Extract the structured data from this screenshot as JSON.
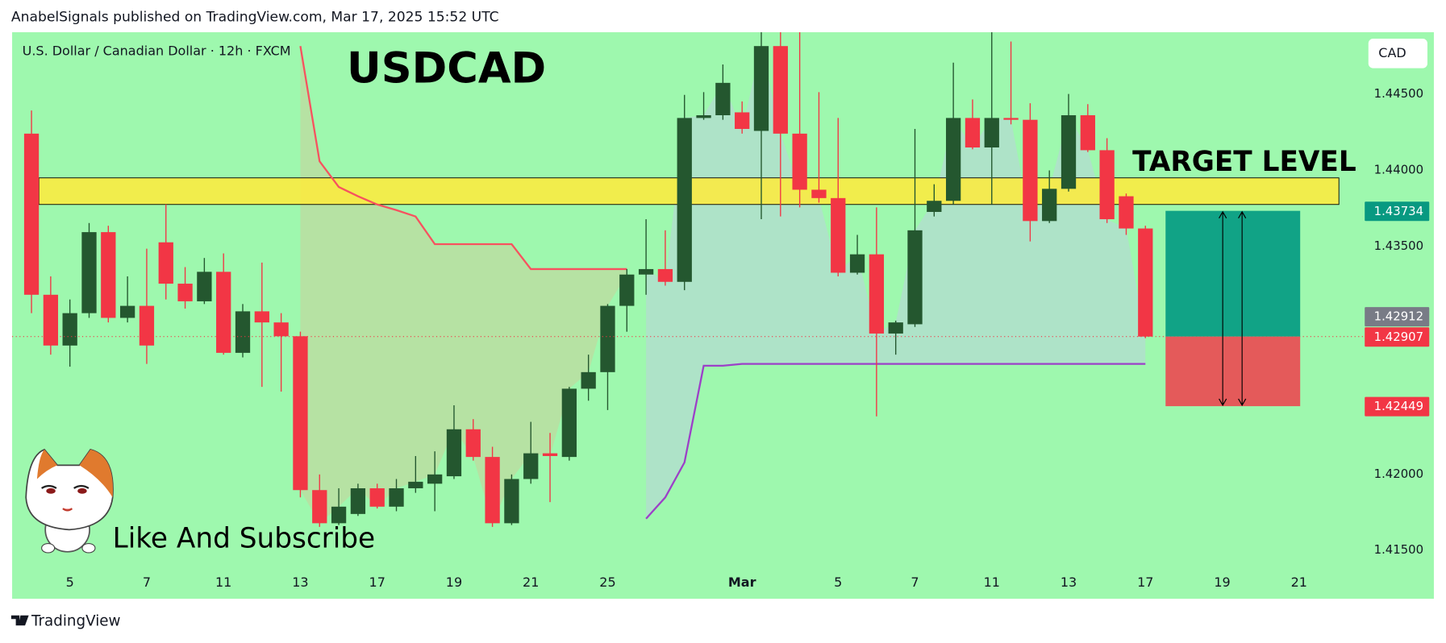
{
  "header": "AnabelSignals published on TradingView.com, Mar 17, 2025 15:52 UTC",
  "footer": "TradingView",
  "chart_data": {
    "type": "candlestick",
    "title": "USDCAD",
    "subtitle": "U.S. Dollar / Canadian Dollar · 12h · FXCM",
    "currency": "CAD",
    "annotation": "Like And Subscribe",
    "categories": [
      null,
      null,
      "5",
      null,
      null,
      null,
      "7",
      null,
      null,
      null,
      "11",
      null,
      null,
      null,
      "13",
      null,
      null,
      null,
      "17",
      null,
      null,
      null,
      "19",
      null,
      null,
      null,
      "21",
      null,
      null,
      null,
      "25",
      null,
      null,
      null,
      null,
      null,
      null,
      "Mar",
      null,
      null,
      null,
      null,
      "5",
      null,
      null,
      null,
      "7",
      null,
      null,
      null,
      "11",
      null,
      null,
      null,
      "13",
      null,
      null,
      null,
      "17",
      null,
      null,
      null,
      "19",
      null,
      null,
      null,
      "21",
      null,
      null
    ],
    "open": [
      1.44242,
      1.43182,
      1.42848,
      1.43061,
      1.43594,
      1.4303,
      1.43109,
      1.43527,
      1.43255,
      1.43139,
      1.43333,
      1.428,
      1.43073,
      1.43,
      1.42909,
      1.41897,
      1.41679,
      1.4174,
      1.41909,
      1.41788,
      1.41909,
      1.41939,
      1.41988,
      1.42297,
      1.42115,
      1.41679,
      1.4197,
      1.42139,
      1.42115,
      1.42564,
      1.42673,
      1.43109,
      1.43315,
      1.43351,
      1.43267,
      1.44345,
      1.44363,
      1.44382,
      1.4426,
      1.44818,
      1.44242,
      1.43873,
      1.43818,
      1.43327,
      1.43448,
      1.42927,
      1.42988,
      1.43727,
      1.438,
      1.44345,
      1.44151,
      1.44345,
      1.44333,
      1.43667,
      1.43879,
      1.44363,
      1.44133,
      1.4383,
      1.43618,
      null,
      null,
      null,
      null,
      null,
      null,
      null,
      null,
      null,
      null
    ],
    "high": [
      1.44394,
      1.43303,
      1.43151,
      1.43654,
      1.43636,
      1.43303,
      1.43485,
      1.43776,
      1.43364,
      1.43424,
      1.43454,
      1.43121,
      1.43394,
      1.43061,
      1.42939,
      1.42,
      1.41909,
      1.41939,
      1.41939,
      1.4197,
      1.42121,
      1.42152,
      1.42455,
      1.42364,
      1.42182,
      1.42,
      1.42346,
      1.42273,
      1.42576,
      1.42788,
      1.43121,
      1.43351,
      1.43679,
      1.43606,
      1.44497,
      1.44515,
      1.44697,
      1.44454,
      1.44909,
      1.44909,
      1.44909,
      1.44515,
      1.44345,
      1.43576,
      1.43757,
      1.43012,
      1.44273,
      1.43909,
      1.44709,
      1.44467,
      1.44909,
      1.44848,
      1.44442,
      1.44,
      1.44503,
      1.44436,
      1.44212,
      1.43848,
      1.43636,
      null,
      null,
      null,
      null,
      null,
      null,
      null,
      null,
      null,
      null
    ],
    "low": [
      1.43061,
      1.42788,
      1.42709,
      1.4303,
      1.43,
      1.43,
      1.42727,
      1.43151,
      1.43091,
      1.43121,
      1.42788,
      1.4277,
      1.42576,
      1.42545,
      1.41849,
      1.41655,
      1.41667,
      1.41727,
      1.41776,
      1.41758,
      1.41879,
      1.41758,
      1.4197,
      1.42091,
      1.41655,
      1.41667,
      1.41939,
      1.41818,
      1.42091,
      1.42485,
      1.42424,
      1.42939,
      1.43182,
      1.43242,
      1.43212,
      1.44333,
      1.44333,
      1.44242,
      1.43679,
      1.43697,
      1.43757,
      1.43788,
      1.43303,
      1.43315,
      1.42382,
      1.42788,
      1.4297,
      1.43697,
      1.43776,
      1.44139,
      1.43776,
      1.44303,
      1.43533,
      1.43654,
      1.43861,
      1.44121,
      1.43654,
      1.43576,
      1.42897,
      null,
      null,
      null,
      null,
      null,
      null,
      null,
      null,
      null,
      null
    ],
    "close": [
      1.43182,
      1.42848,
      1.43061,
      1.43594,
      1.4303,
      1.43109,
      1.42848,
      1.43255,
      1.43139,
      1.43333,
      1.428,
      1.43073,
      1.43,
      1.42909,
      1.41897,
      1.41679,
      1.41788,
      1.41909,
      1.41788,
      1.41909,
      1.41952,
      1.42,
      1.42297,
      1.42115,
      1.41679,
      1.4197,
      1.42139,
      1.42121,
      1.42564,
      1.42673,
      1.43109,
      1.43315,
      1.43351,
      1.43267,
      1.44345,
      1.44363,
      1.44576,
      1.44273,
      1.44818,
      1.44242,
      1.43873,
      1.43818,
      1.43327,
      1.43448,
      1.42927,
      1.43,
      1.43606,
      1.438,
      1.44345,
      1.44151,
      1.44345,
      1.44333,
      1.43667,
      1.43879,
      1.44363,
      1.44133,
      1.43679,
      1.43618,
      1.42907,
      null,
      null,
      null,
      null,
      null,
      null,
      null,
      null,
      null,
      null
    ],
    "up_color": "#24572f",
    "down_color": "#f23645",
    "ylim": [
      1.41182,
      1.44909
    ],
    "yticks": [
      {
        "value": 1.415,
        "label": "1.41500"
      },
      {
        "value": 1.42,
        "label": "1.42000"
      },
      {
        "value": 1.435,
        "label": "1.43500"
      },
      {
        "value": 1.44,
        "label": "1.44000"
      },
      {
        "value": 1.445,
        "label": "1.44500"
      }
    ],
    "overlays": [
      {
        "color": "#f7525f",
        "values": [
          null,
          null,
          null,
          null,
          null,
          null,
          null,
          null,
          null,
          null,
          null,
          null,
          null,
          null,
          1.44818,
          1.4406,
          1.43891,
          1.4383,
          1.43776,
          1.43739,
          1.43697,
          1.43515,
          1.43515,
          1.43515,
          1.43515,
          1.43515,
          1.43351,
          1.43351,
          1.43351,
          1.43351,
          1.43351,
          1.43351,
          null,
          null,
          null,
          null,
          null,
          null,
          null,
          null,
          null,
          null,
          null,
          null,
          null,
          null,
          null,
          null,
          null,
          null,
          null,
          null,
          null,
          null,
          null,
          null,
          null,
          null,
          null,
          null,
          null,
          null,
          null,
          null,
          null,
          null,
          null,
          null,
          null
        ]
      },
      {
        "color": "#9c40c8",
        "values": [
          null,
          null,
          null,
          null,
          null,
          null,
          null,
          null,
          null,
          null,
          null,
          null,
          null,
          null,
          null,
          null,
          null,
          null,
          null,
          null,
          null,
          null,
          null,
          null,
          null,
          null,
          null,
          null,
          null,
          null,
          null,
          null,
          1.41709,
          1.41849,
          1.42079,
          1.42715,
          1.42715,
          1.42727,
          1.42727,
          1.42727,
          1.42727,
          1.42727,
          1.42727,
          1.42727,
          1.42727,
          1.42727,
          1.42727,
          1.42727,
          1.42727,
          1.42727,
          1.42727,
          1.42727,
          1.42727,
          1.42727,
          1.42727,
          1.42727,
          1.42727,
          1.42727,
          1.42727,
          null,
          null,
          null,
          null,
          null,
          null,
          null,
          null,
          null,
          null
        ]
      }
    ],
    "target_zone": {
      "label": "TARGET LEVEL",
      "range": [
        1.43776,
        1.43951
      ],
      "color": "#ffeb3b"
    },
    "price_labels": [
      {
        "value": 1.43734,
        "color": "#089981"
      },
      {
        "value": 1.42912,
        "color": "#787b86"
      },
      {
        "value": 1.42907,
        "color": "#f23645"
      },
      {
        "value": 1.42449,
        "color": "#f23645"
      }
    ]
  }
}
